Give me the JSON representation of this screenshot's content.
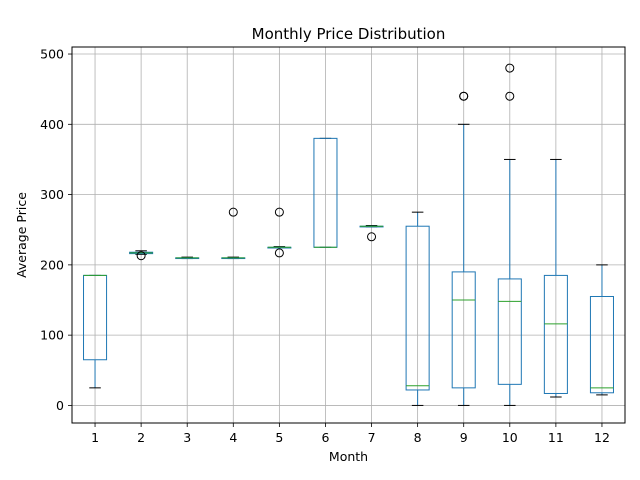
{
  "chart_data": {
    "type": "box",
    "title": "Monthly Price Distribution",
    "xlabel": "Month",
    "ylabel": "Average Price",
    "ylim": [
      -25,
      510
    ],
    "yticks": [
      0,
      100,
      200,
      300,
      400,
      500
    ],
    "grid": true,
    "colors": {
      "box": "#1f77b4",
      "median": "#2ca02c",
      "whisker": "#1f77b4",
      "cap": "#000000",
      "grid": "#b0b0b0"
    },
    "categories": [
      "1",
      "2",
      "3",
      "4",
      "5",
      "6",
      "7",
      "8",
      "9",
      "10",
      "11",
      "12"
    ],
    "boxes": [
      {
        "whislo": 25,
        "q1": 65,
        "med": 185,
        "q3": 185,
        "whishi": 185,
        "fliers": []
      },
      {
        "whislo": 215,
        "q1": 216,
        "med": 217,
        "q3": 218,
        "whishi": 220,
        "fliers": [
          213
        ]
      },
      {
        "whislo": 209,
        "q1": 209,
        "med": 210,
        "q3": 210,
        "whishi": 211,
        "fliers": []
      },
      {
        "whislo": 209,
        "q1": 209,
        "med": 210,
        "q3": 210,
        "whishi": 211,
        "fliers": [
          275
        ]
      },
      {
        "whislo": 224,
        "q1": 224,
        "med": 225,
        "q3": 225,
        "whishi": 226,
        "fliers": [
          217,
          275
        ]
      },
      {
        "whislo": 225,
        "q1": 225,
        "med": 225,
        "q3": 380,
        "whishi": 380,
        "fliers": []
      },
      {
        "whislo": 254,
        "q1": 254,
        "med": 255,
        "q3": 255,
        "whishi": 256,
        "fliers": [
          240
        ]
      },
      {
        "whislo": 0,
        "q1": 22,
        "med": 28,
        "q3": 255,
        "whishi": 275,
        "fliers": []
      },
      {
        "whislo": 0,
        "q1": 25,
        "med": 150,
        "q3": 190,
        "whishi": 400,
        "fliers": [
          440,
          440
        ]
      },
      {
        "whislo": 0,
        "q1": 30,
        "med": 148,
        "q3": 180,
        "whishi": 350,
        "fliers": [
          440,
          480
        ]
      },
      {
        "whislo": 12,
        "q1": 17,
        "med": 116,
        "q3": 185,
        "whishi": 350,
        "fliers": []
      },
      {
        "whislo": 15,
        "q1": 18,
        "med": 25,
        "q3": 155,
        "whishi": 200,
        "fliers": []
      }
    ]
  }
}
